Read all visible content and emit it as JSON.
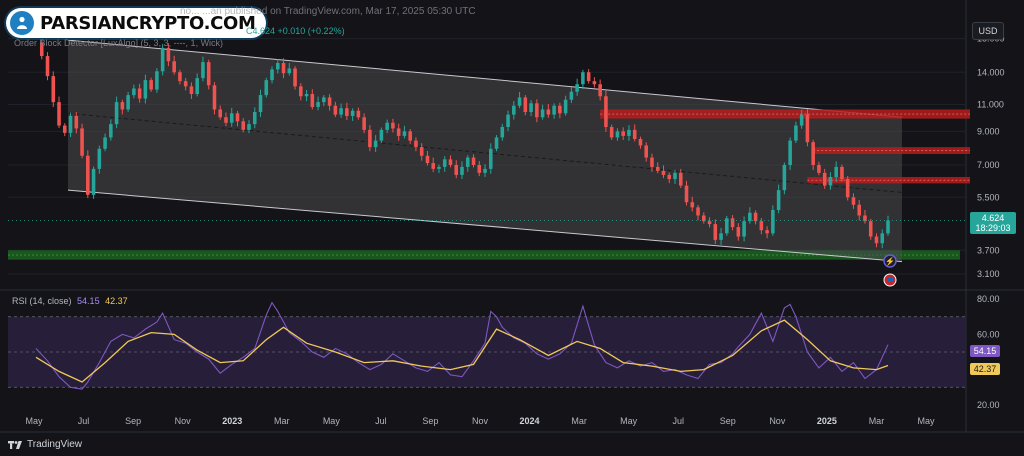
{
  "header": {
    "publish_line": "no... ...an published on TradingView.com, Mar 17, 2025 05:30 UTC",
    "indicator_line": "Order Block Detector [LuxAlgo] (5, 3, 3, ----, 1, Wick)",
    "ohlc_line": "C4.624 +0.010 (+0.22%)"
  },
  "logo": {
    "text": "PARSIANCRYPTO.COM"
  },
  "currency": "USD",
  "rsi_panel": {
    "label": "RSI (14, close)",
    "value_rsi": "54.15",
    "value_ma": "42.37"
  },
  "footer": {
    "brand": "TradingView"
  },
  "colors": {
    "up": "#26a69a",
    "down": "#ef5350",
    "channel_fill": "#4a4a4f",
    "bearish_ob": "#b71c1c",
    "bullish_ob": "#1b5e20",
    "rsi_line": "#7e57c2",
    "rsi_ma": "#f0c95a",
    "rsi_band": "#2a2140"
  },
  "chart_data": [
    {
      "type": "candlestick",
      "title": "",
      "price_label": "4.624",
      "price_countdown": "18:29:03",
      "x_tick_labels": [
        "May",
        "Jul",
        "Sep",
        "Nov",
        "2023",
        "Mar",
        "May",
        "Jul",
        "Sep",
        "Nov",
        "2024",
        "Mar",
        "May",
        "Jul",
        "Sep",
        "Nov",
        "2025",
        "Mar",
        "May"
      ],
      "y_tick_labels": [
        "18.000",
        "14.000",
        "11.000",
        "9.000",
        "7.000",
        "5.500",
        "4.624",
        "3.700",
        "3.100"
      ],
      "y_ticks": [
        18.0,
        14.0,
        11.0,
        9.0,
        7.0,
        5.5,
        3.7,
        3.1
      ],
      "y_scale": "log",
      "ylim": [
        2.75,
        21.0
      ],
      "t_range": [
        0,
        148
      ],
      "price_series": [
        [
          0,
          17.5
        ],
        [
          1,
          15.8
        ],
        [
          2,
          13.6
        ],
        [
          3,
          11.2
        ],
        [
          4,
          9.4
        ],
        [
          5,
          8.9
        ],
        [
          6,
          10.1
        ],
        [
          7,
          9.2
        ],
        [
          8,
          7.5
        ],
        [
          9,
          5.6
        ],
        [
          10,
          6.8
        ],
        [
          11,
          7.9
        ],
        [
          12,
          8.6
        ],
        [
          13,
          9.5
        ],
        [
          14,
          11.2
        ],
        [
          15,
          10.6
        ],
        [
          16,
          11.8
        ],
        [
          17,
          12.4
        ],
        [
          18,
          11.5
        ],
        [
          19,
          13.2
        ],
        [
          20,
          12.3
        ],
        [
          21,
          14.1
        ],
        [
          22,
          16.8
        ],
        [
          23,
          15.2
        ],
        [
          24,
          14.0
        ],
        [
          25,
          13.1
        ],
        [
          26,
          12.6
        ],
        [
          27,
          11.9
        ],
        [
          28,
          13.4
        ],
        [
          29,
          15.1
        ],
        [
          30,
          12.7
        ],
        [
          31,
          10.6
        ],
        [
          32,
          10.0
        ],
        [
          33,
          9.6
        ],
        [
          34,
          10.3
        ],
        [
          35,
          9.7
        ],
        [
          36,
          9.1
        ],
        [
          37,
          9.5
        ],
        [
          38,
          10.4
        ],
        [
          39,
          11.8
        ],
        [
          40,
          13.2
        ],
        [
          41,
          14.3
        ],
        [
          42,
          15.0
        ],
        [
          43,
          13.9
        ],
        [
          44,
          14.4
        ],
        [
          45,
          12.6
        ],
        [
          46,
          11.7
        ],
        [
          47,
          11.9
        ],
        [
          48,
          10.8
        ],
        [
          49,
          11.2
        ],
        [
          50,
          11.6
        ],
        [
          51,
          10.9
        ],
        [
          52,
          10.2
        ],
        [
          53,
          10.7
        ],
        [
          54,
          10.1
        ],
        [
          55,
          10.5
        ],
        [
          56,
          10.0
        ],
        [
          57,
          9.1
        ],
        [
          58,
          8.0
        ],
        [
          59,
          8.4
        ],
        [
          60,
          9.1
        ],
        [
          61,
          9.6
        ],
        [
          62,
          9.2
        ],
        [
          63,
          8.7
        ],
        [
          64,
          9.0
        ],
        [
          65,
          8.4
        ],
        [
          66,
          8.0
        ],
        [
          67,
          7.5
        ],
        [
          68,
          7.1
        ],
        [
          69,
          6.8
        ],
        [
          70,
          6.9
        ],
        [
          71,
          7.3
        ],
        [
          72,
          7.0
        ],
        [
          73,
          6.5
        ],
        [
          74,
          6.9
        ],
        [
          75,
          7.4
        ],
        [
          76,
          7.0
        ],
        [
          77,
          6.6
        ],
        [
          78,
          6.8
        ],
        [
          79,
          7.9
        ],
        [
          80,
          8.6
        ],
        [
          81,
          9.3
        ],
        [
          82,
          10.2
        ],
        [
          83,
          10.9
        ],
        [
          84,
          11.6
        ],
        [
          85,
          10.4
        ],
        [
          86,
          11.1
        ],
        [
          87,
          10.0
        ],
        [
          88,
          10.6
        ],
        [
          89,
          10.2
        ],
        [
          90,
          10.9
        ],
        [
          91,
          10.3
        ],
        [
          92,
          11.4
        ],
        [
          93,
          12.1
        ],
        [
          94,
          12.8
        ],
        [
          95,
          14.0
        ],
        [
          96,
          13.1
        ],
        [
          97,
          12.8
        ],
        [
          98,
          11.7
        ],
        [
          99,
          9.3
        ],
        [
          100,
          8.6
        ],
        [
          101,
          9.0
        ],
        [
          102,
          8.7
        ],
        [
          103,
          9.1
        ],
        [
          104,
          8.5
        ],
        [
          105,
          8.1
        ],
        [
          106,
          7.4
        ],
        [
          107,
          6.9
        ],
        [
          108,
          6.7
        ],
        [
          109,
          6.5
        ],
        [
          110,
          6.3
        ],
        [
          111,
          6.6
        ],
        [
          112,
          6.0
        ],
        [
          113,
          5.3
        ],
        [
          114,
          5.1
        ],
        [
          115,
          4.8
        ],
        [
          116,
          4.6
        ],
        [
          117,
          4.5
        ],
        [
          118,
          4.0
        ],
        [
          119,
          4.2
        ],
        [
          120,
          4.7
        ],
        [
          121,
          4.4
        ],
        [
          122,
          4.1
        ],
        [
          123,
          4.6
        ],
        [
          124,
          4.9
        ],
        [
          125,
          4.6
        ],
        [
          126,
          4.3
        ],
        [
          127,
          4.2
        ],
        [
          128,
          5.0
        ],
        [
          129,
          5.8
        ],
        [
          130,
          7.0
        ],
        [
          131,
          8.4
        ],
        [
          132,
          9.4
        ],
        [
          133,
          10.2
        ],
        [
          134,
          8.3
        ],
        [
          135,
          7.0
        ],
        [
          136,
          6.6
        ],
        [
          137,
          6.0
        ],
        [
          138,
          6.4
        ],
        [
          139,
          6.9
        ],
        [
          140,
          6.3
        ],
        [
          141,
          5.5
        ],
        [
          142,
          5.2
        ],
        [
          143,
          4.8
        ],
        [
          144,
          4.6
        ],
        [
          145,
          4.1
        ],
        [
          146,
          3.9
        ],
        [
          147,
          4.2
        ],
        [
          148,
          4.624
        ]
      ],
      "regression_channel": {
        "start": [
          0,
          17.8,
          10.3,
          5.8
        ],
        "end": [
          148,
          10.0,
          5.7,
          3.4
        ],
        "style": "upper / dashed mid / lower"
      },
      "order_blocks": [
        {
          "kind": "bearish",
          "from_t": 98,
          "top": 10.6,
          "bottom": 9.9
        },
        {
          "kind": "bearish",
          "from_t": 135,
          "top": 8.0,
          "bottom": 7.6
        },
        {
          "kind": "bearish",
          "from_t": 134,
          "top": 6.4,
          "bottom": 6.1
        },
        {
          "kind": "bullish",
          "from_t": 0,
          "top": 3.7,
          "bottom": 3.45
        }
      ]
    },
    {
      "type": "line",
      "title": "RSI (14, close)",
      "y_tick_labels": [
        "80.00",
        "60.00",
        "20.00"
      ],
      "ylim": [
        16,
        84
      ],
      "bands": {
        "upper": 70,
        "mid": 50,
        "lower": 30
      },
      "series": [
        {
          "name": "RSI",
          "points": [
            [
              0,
              52
            ],
            [
              2,
              45
            ],
            [
              4,
              36
            ],
            [
              6,
              30
            ],
            [
              8,
              29
            ],
            [
              9,
              33
            ],
            [
              11,
              44
            ],
            [
              13,
              56
            ],
            [
              15,
              60
            ],
            [
              17,
              58
            ],
            [
              19,
              63
            ],
            [
              21,
              67
            ],
            [
              22,
              72
            ],
            [
              24,
              57
            ],
            [
              26,
              55
            ],
            [
              28,
              50
            ],
            [
              30,
              46
            ],
            [
              32,
              38
            ],
            [
              34,
              43
            ],
            [
              36,
              47
            ],
            [
              38,
              52
            ],
            [
              40,
              71
            ],
            [
              41,
              78
            ],
            [
              42,
              73
            ],
            [
              44,
              61
            ],
            [
              46,
              56
            ],
            [
              48,
              50
            ],
            [
              50,
              47
            ],
            [
              52,
              52
            ],
            [
              54,
              49
            ],
            [
              56,
              44
            ],
            [
              58,
              40
            ],
            [
              60,
              43
            ],
            [
              62,
              49
            ],
            [
              64,
              45
            ],
            [
              66,
              41
            ],
            [
              68,
              39
            ],
            [
              70,
              44
            ],
            [
              72,
              37
            ],
            [
              74,
              36
            ],
            [
              76,
              45
            ],
            [
              78,
              55
            ],
            [
              79,
              73
            ],
            [
              80,
              70
            ],
            [
              81,
              64
            ],
            [
              83,
              58
            ],
            [
              85,
              55
            ],
            [
              87,
              49
            ],
            [
              89,
              46
            ],
            [
              91,
              49
            ],
            [
              93,
              55
            ],
            [
              95,
              76
            ],
            [
              96,
              65
            ],
            [
              97,
              54
            ],
            [
              99,
              44
            ],
            [
              101,
              41
            ],
            [
              103,
              45
            ],
            [
              105,
              42
            ],
            [
              107,
              44
            ],
            [
              109,
              39
            ],
            [
              111,
              40
            ],
            [
              113,
              37
            ],
            [
              115,
              35
            ],
            [
              117,
              43
            ],
            [
              119,
              44
            ],
            [
              121,
              49
            ],
            [
              122,
              53
            ],
            [
              124,
              60
            ],
            [
              126,
              72
            ],
            [
              128,
              56
            ],
            [
              130,
              75
            ],
            [
              131,
              77
            ],
            [
              132,
              70
            ],
            [
              134,
              50
            ],
            [
              136,
              41
            ],
            [
              138,
              47
            ],
            [
              140,
              39
            ],
            [
              142,
              44
            ],
            [
              144,
              35
            ],
            [
              146,
              40
            ],
            [
              148,
              54.15
            ]
          ]
        },
        {
          "name": "RSI-based MA",
          "points": [
            [
              0,
              47
            ],
            [
              4,
              39
            ],
            [
              8,
              33
            ],
            [
              12,
              44
            ],
            [
              16,
              56
            ],
            [
              20,
              61
            ],
            [
              24,
              60
            ],
            [
              28,
              51
            ],
            [
              32,
              44
            ],
            [
              36,
              45
            ],
            [
              40,
              57
            ],
            [
              43,
              64
            ],
            [
              47,
              55
            ],
            [
              52,
              50
            ],
            [
              57,
              44
            ],
            [
              62,
              45
            ],
            [
              67,
              42
            ],
            [
              72,
              40
            ],
            [
              76,
              43
            ],
            [
              80,
              63
            ],
            [
              84,
              57
            ],
            [
              89,
              48
            ],
            [
              94,
              56
            ],
            [
              98,
              52
            ],
            [
              102,
              44
            ],
            [
              107,
              42
            ],
            [
              112,
              39
            ],
            [
              116,
              40
            ],
            [
              121,
              48
            ],
            [
              126,
              62
            ],
            [
              130,
              68
            ],
            [
              134,
              57
            ],
            [
              138,
              45
            ],
            [
              142,
              41
            ],
            [
              146,
              40
            ],
            [
              148,
              42.37
            ]
          ]
        }
      ]
    }
  ]
}
